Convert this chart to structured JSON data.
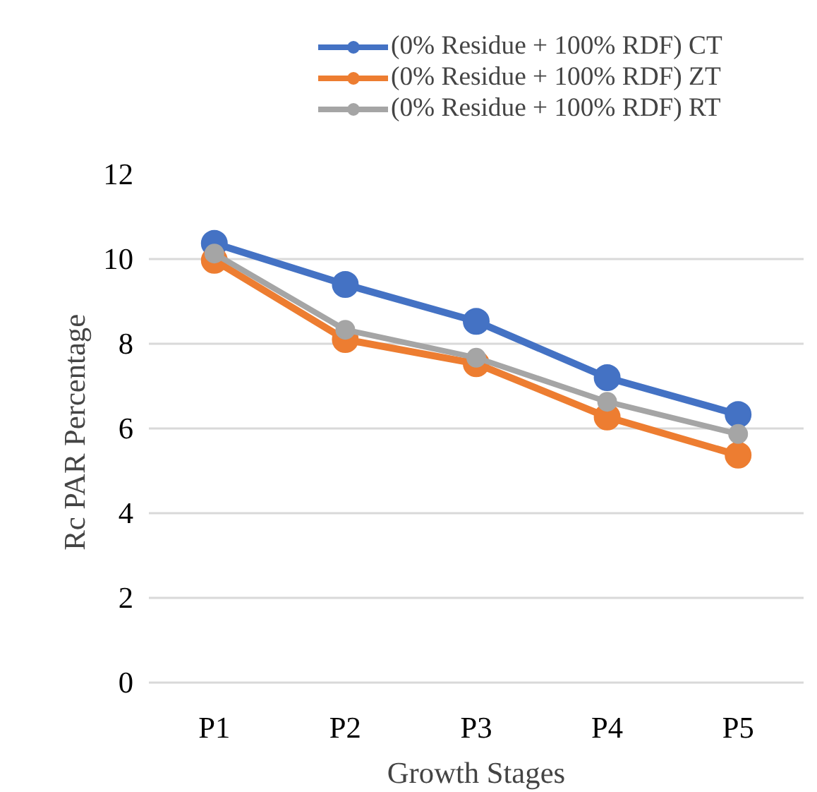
{
  "chart_data": {
    "type": "line",
    "xlabel": "Growth Stages",
    "ylabel": "Rc  PAR Percentage",
    "categories": [
      "P1",
      "P2",
      "P3",
      "P4",
      "P5"
    ],
    "series": [
      {
        "name": "(0% Residue + 100% RDF) CT",
        "color": "#4472c4",
        "values": [
          10.37,
          9.4,
          8.53,
          7.2,
          6.33
        ]
      },
      {
        "name": "(0% Residue + 100% RDF) ZT",
        "color": "#ed7d31",
        "values": [
          9.97,
          8.1,
          7.53,
          6.27,
          5.37
        ]
      },
      {
        "name": "(0% Residue + 100% RDF) RT",
        "color": "#a5a5a5",
        "values": [
          10.13,
          8.33,
          7.67,
          6.63,
          5.87
        ]
      }
    ],
    "ylim": [
      0,
      12
    ],
    "yticks": [
      0,
      2,
      4,
      6,
      8,
      10,
      12
    ],
    "grid": "y",
    "legend": "top",
    "marker": "circle",
    "line_style": "solid"
  }
}
